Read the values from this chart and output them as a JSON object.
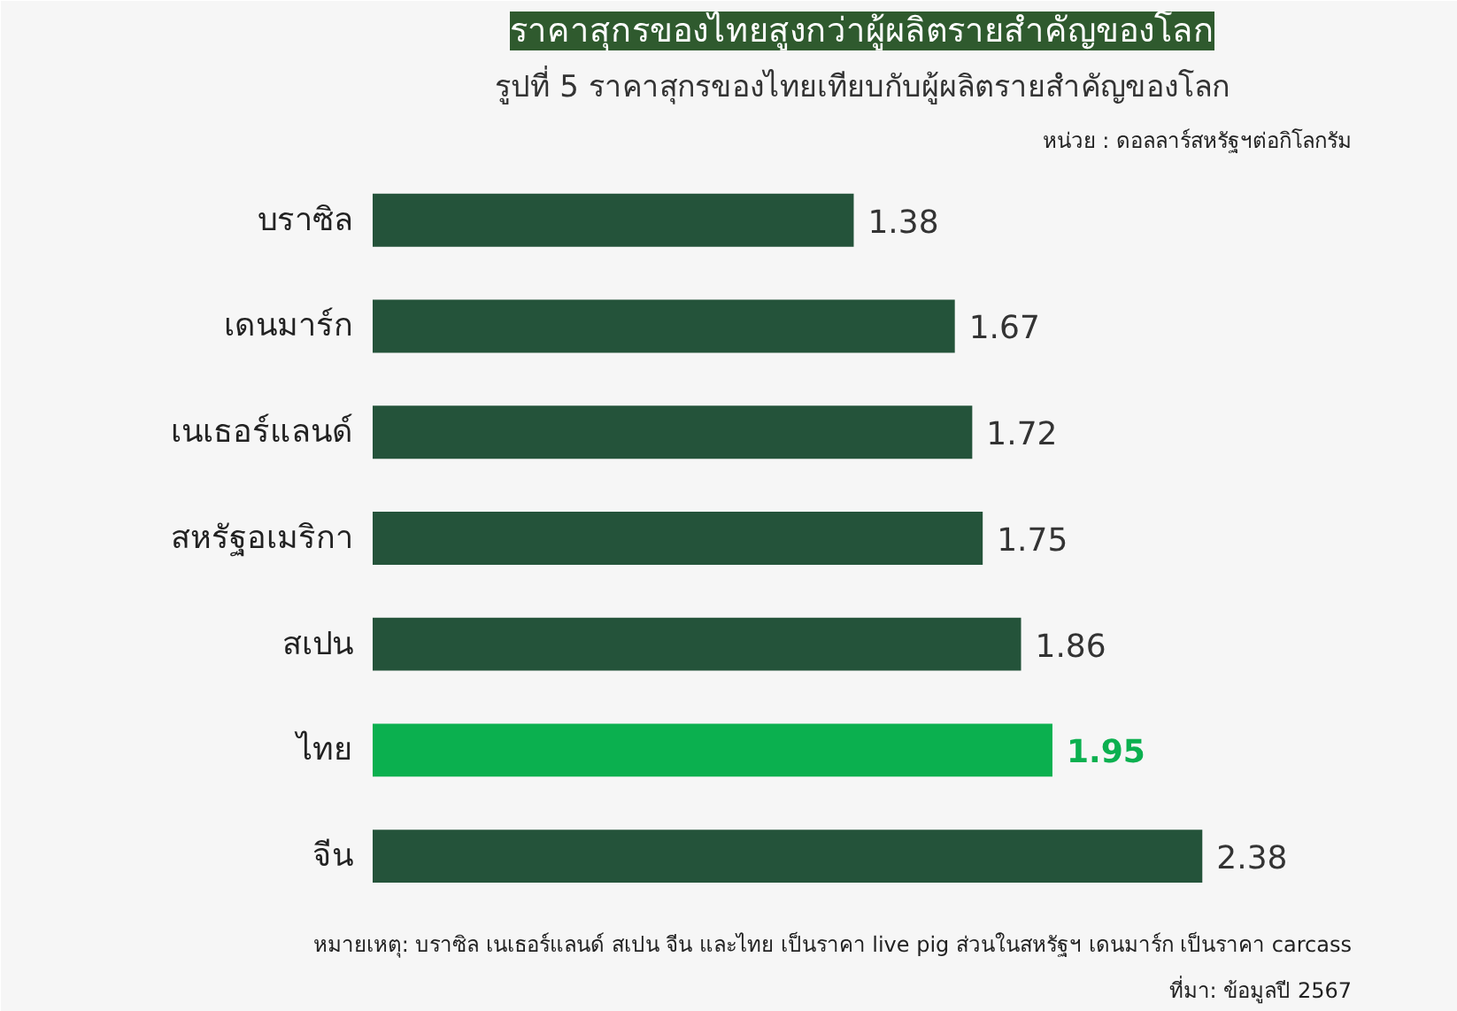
{
  "chart_data": {
    "type": "bar",
    "orientation": "horizontal",
    "title": "ราคาสุกรของไทยสูงกว่าผู้ผลิตรายสำคัญของโลก",
    "subtitle": "รูปที่ 5 ราคาสุกรของไทยเทียบกับผู้ผลิตรายสำคัญของโลก",
    "categories": [
      "บราซิล",
      "เดนมาร์ก",
      "เนเธอร์แลนด์",
      "สหรัฐอเมริกา",
      "สเปน",
      "ไทย",
      "จีน"
    ],
    "values": [
      1.38,
      1.67,
      1.72,
      1.75,
      1.86,
      1.95,
      2.38
    ],
    "color": "#24533a",
    "colors": [
      "#24533a",
      "#24533a",
      "#24533a",
      "#24533a",
      "#24533a",
      "#0bb04f",
      "#24533a"
    ],
    "data_labels": true,
    "grid": false,
    "annotations": [
      "หน่วย : ดอลลาร์สหรัฐฯต่อกิโลกรัม",
      "หมายเหตุ: บราซิล เนเธอร์แลนด์ สเปน จีน และไทย เป็นราคา live pig ส่วนในสหรัฐฯ เดนมาร์ก เป็นราคา carcass",
      "ที่มา: ข้อมูลปี 2567"
    ]
  }
}
